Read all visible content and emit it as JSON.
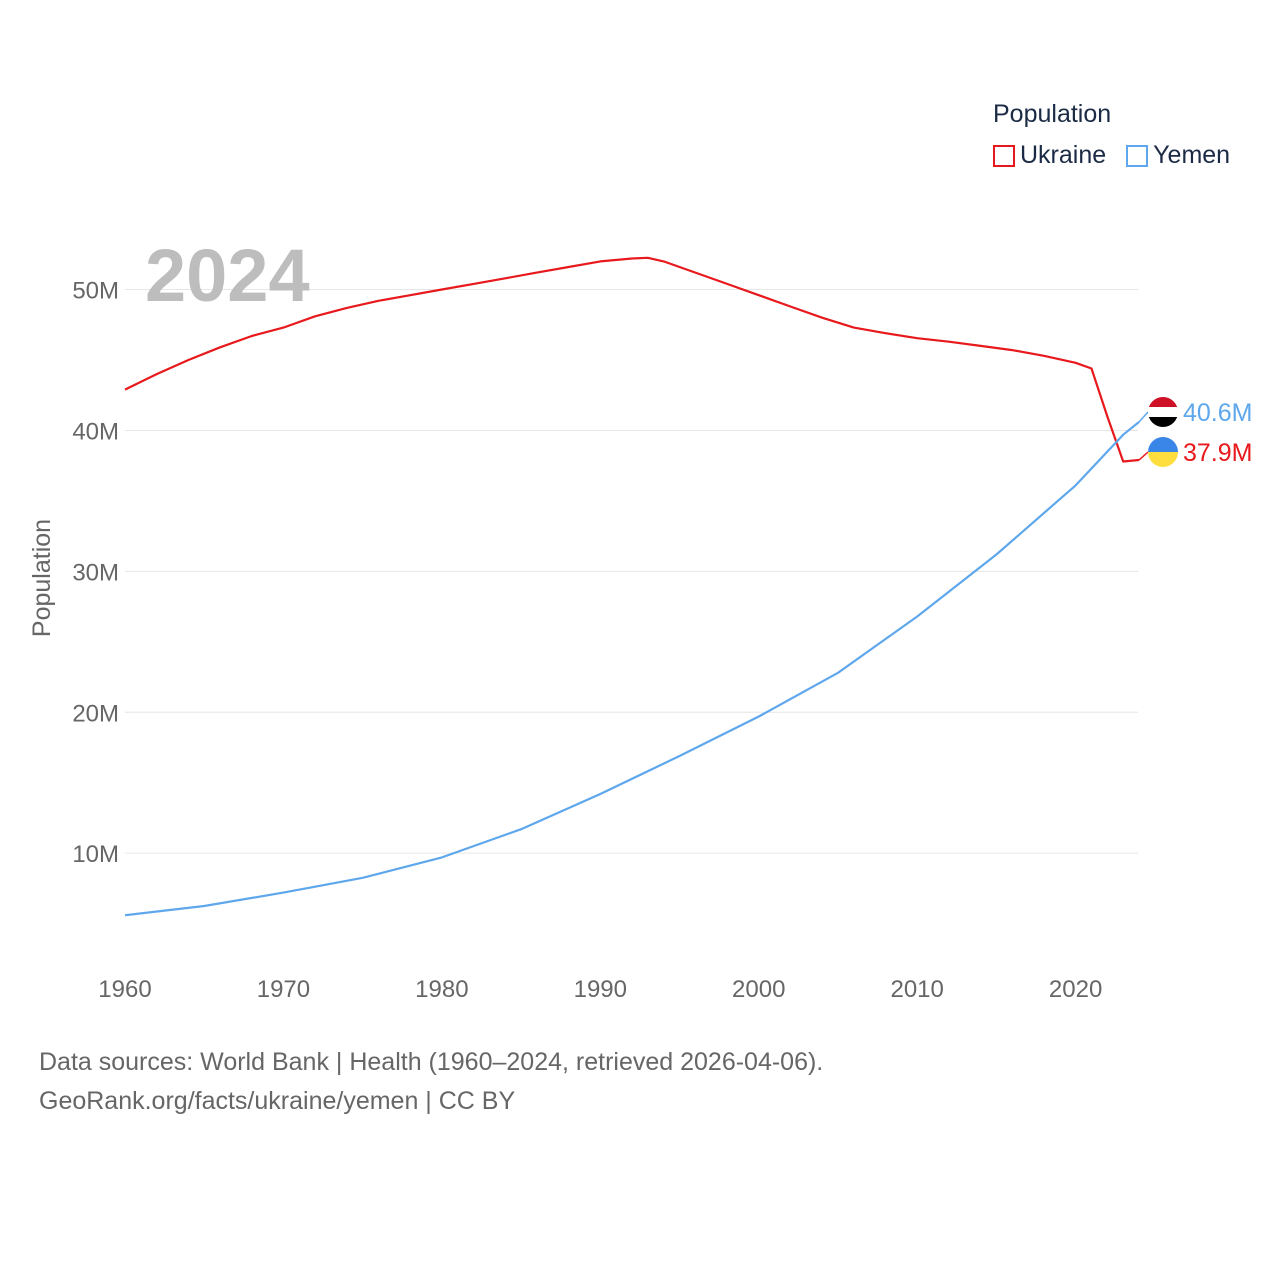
{
  "chart_data": {
    "type": "line",
    "year_label": "2024",
    "ylabel": "Population",
    "xlim": [
      1960,
      2024
    ],
    "ylim": [
      1000000,
      56000000
    ],
    "x_ticks": [
      1960,
      1970,
      1980,
      1990,
      2000,
      2010,
      2020
    ],
    "y_ticks": [
      {
        "value": 10000000,
        "label": "10M"
      },
      {
        "value": 20000000,
        "label": "20M"
      },
      {
        "value": 30000000,
        "label": "30M"
      },
      {
        "value": 40000000,
        "label": "40M"
      },
      {
        "value": 50000000,
        "label": "50M"
      }
    ],
    "legend_title": "Population",
    "series": [
      {
        "name": "Ukraine",
        "color": "#e8191c",
        "flag": "ukraine-flag",
        "end_label": "37.9M",
        "x": [
          1960,
          1962,
          1964,
          1966,
          1968,
          1970,
          1972,
          1974,
          1976,
          1978,
          1980,
          1982,
          1984,
          1986,
          1988,
          1990,
          1992,
          1993,
          1994,
          1996,
          1998,
          2000,
          2002,
          2004,
          2006,
          2008,
          2010,
          2012,
          2014,
          2016,
          2018,
          2020,
          2021,
          2022,
          2023,
          2024
        ],
        "values": [
          42900000,
          44000000,
          45000000,
          45900000,
          46700000,
          47300000,
          48100000,
          48700000,
          49200000,
          49600000,
          50000000,
          50400000,
          50800000,
          51200000,
          51600000,
          52000000,
          52200000,
          52250000,
          52000000,
          51200000,
          50400000,
          49600000,
          48800000,
          48000000,
          47300000,
          46900000,
          46550000,
          46300000,
          46000000,
          45700000,
          45300000,
          44800000,
          44400000,
          41000000,
          37800000,
          37900000
        ]
      },
      {
        "name": "Yemen",
        "color": "#5ea7ec",
        "flag": "yemen-flag",
        "end_label": "40.6M",
        "x": [
          1960,
          1965,
          1970,
          1975,
          1980,
          1985,
          1990,
          1995,
          2000,
          2005,
          2010,
          2015,
          2020,
          2023,
          2024
        ],
        "values": [
          5600000,
          6250000,
          7200000,
          8250000,
          9700000,
          11700000,
          14200000,
          16900000,
          19700000,
          22800000,
          26800000,
          31200000,
          36100000,
          39700000,
          40600000
        ]
      }
    ]
  },
  "footer": {
    "line1": "Data sources: World Bank | Health (1960–2024, retrieved 2026-04-06).",
    "line2": "GeoRank.org/facts/ukraine/yemen | CC BY"
  }
}
